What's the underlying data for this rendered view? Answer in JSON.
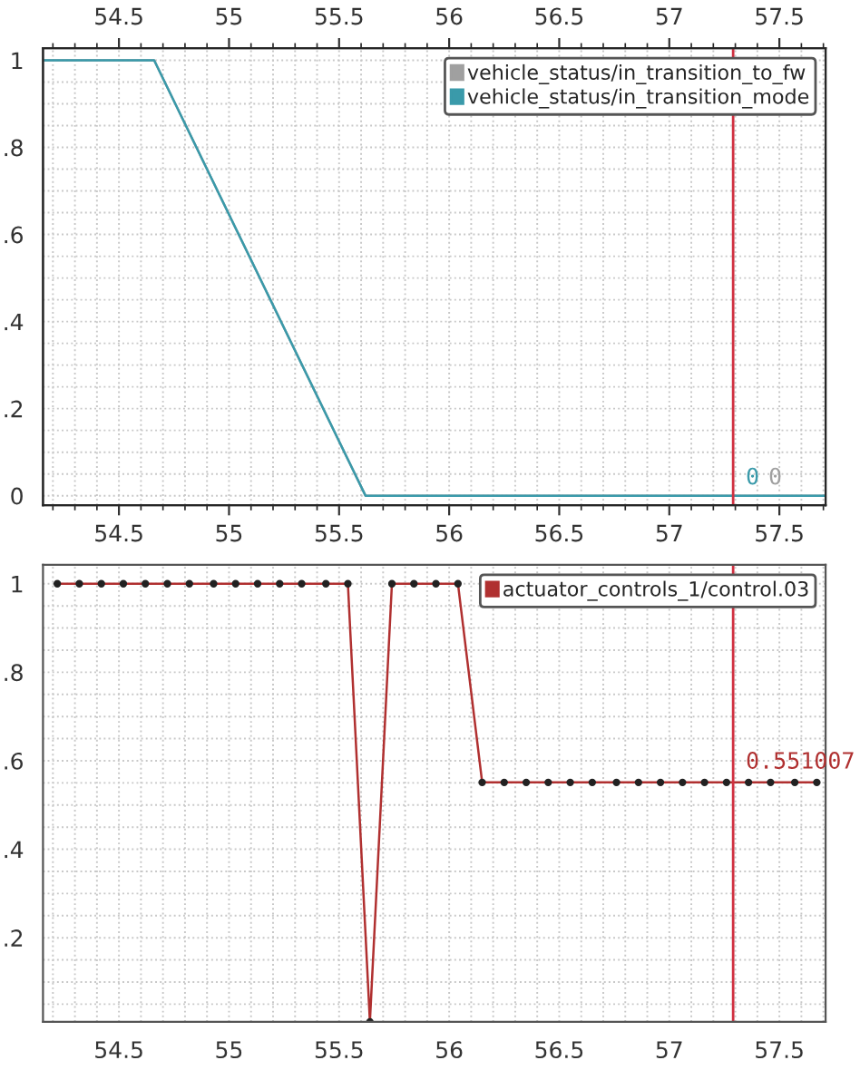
{
  "chart_data": [
    {
      "type": "line",
      "xlim": [
        54.155,
        57.71
      ],
      "xticks": [
        54.5,
        55,
        55.5,
        56,
        56.5,
        57,
        57.5
      ],
      "x2lim": [
        54.155,
        57.71
      ],
      "x2ticks": [
        54.5,
        55,
        55.5,
        56,
        56.5,
        57,
        57.5
      ],
      "ylim": [
        -0.022,
        1.028
      ],
      "yticks": [
        0,
        {
          "value": 0.2,
          "label": ".2"
        },
        {
          "value": 0.4,
          "label": ".4"
        },
        {
          "value": 0.6,
          "label": ".6"
        },
        {
          "value": 0.8,
          "label": ".8"
        },
        1
      ],
      "grid": true,
      "legend": "top right",
      "series": [
        {
          "name": "vehicle_status/in_transition_to_fw",
          "color": "#a0a0a0",
          "x": [
            54.155,
            54.66,
            55.62,
            57.71
          ],
          "values": [
            1,
            1,
            0,
            0
          ]
        },
        {
          "name": "vehicle_status/in_transition_mode",
          "color": "#3a9aaa",
          "x": [
            54.155,
            54.66,
            55.62,
            57.71
          ],
          "values": [
            1,
            1,
            0,
            0
          ]
        }
      ],
      "ref_lines": [
        {
          "axis": "x",
          "value": 57.29,
          "color": "#d03040"
        }
      ],
      "annotations": [
        "0",
        "0"
      ]
    },
    {
      "type": "line",
      "xlim": [
        54.155,
        57.71
      ],
      "xticks": [
        54.5,
        55,
        55.5,
        56,
        56.5,
        57,
        57.5
      ],
      "ylim": [
        0.01,
        1.043
      ],
      "yticks": [
        {
          "value": 0.2,
          "label": ".2"
        },
        {
          "value": 0.4,
          "label": ".4"
        },
        {
          "value": 0.6,
          "label": ".6"
        },
        {
          "value": 0.8,
          "label": ".8"
        },
        1
      ],
      "grid": true,
      "legend": "top right",
      "marker": "circle",
      "series": [
        {
          "name": "actuator_controls_1/control.03",
          "color": "#b03030",
          "x": [
            54.22,
            54.32,
            54.42,
            54.52,
            54.62,
            54.72,
            54.82,
            54.93,
            55.03,
            55.13,
            55.23,
            55.33,
            55.44,
            55.54,
            55.64,
            55.74,
            55.84,
            55.94,
            56.04,
            56.15,
            56.25,
            56.35,
            56.45,
            56.55,
            56.65,
            56.76,
            56.86,
            56.96,
            57.06,
            57.16,
            57.26,
            57.36,
            57.46,
            57.57,
            57.67
          ],
          "values": [
            1,
            1,
            1,
            1,
            1,
            1,
            1,
            1,
            1,
            1,
            1,
            1,
            1,
            1,
            0.01,
            1,
            1,
            1,
            1,
            0.551007,
            0.551007,
            0.551007,
            0.551007,
            0.551007,
            0.551007,
            0.551007,
            0.551007,
            0.551007,
            0.551007,
            0.551007,
            0.551007,
            0.551007,
            0.551007,
            0.551007,
            0.551007
          ]
        }
      ],
      "ref_lines": [
        {
          "axis": "x",
          "value": 57.29,
          "color": "#d03040"
        }
      ],
      "annotations": [
        {
          "text": "0.551007",
          "x": 57.29,
          "y": 0.551007
        }
      ]
    }
  ]
}
